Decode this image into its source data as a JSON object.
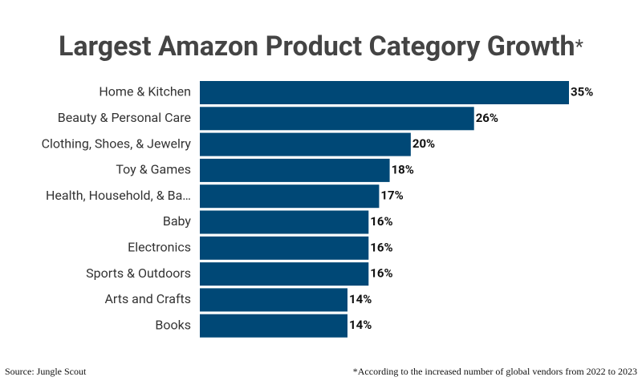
{
  "chart_data": {
    "type": "bar",
    "orientation": "horizontal",
    "title": "Largest Amazon Product Category Growth",
    "title_mark": "*",
    "categories": [
      "Home & Kitchen",
      "Beauty & Personal Care",
      "Clothing, Shoes, & Jewelry",
      "Toy & Games",
      "Health, Household, & Ba…",
      "Baby",
      "Electronics",
      "Sports & Outdoors",
      "Arts and Crafts",
      "Books"
    ],
    "values": [
      35,
      26,
      20,
      18,
      17,
      16,
      16,
      16,
      14,
      14
    ],
    "value_labels": [
      "35%",
      "26%",
      "20%",
      "18%",
      "17%",
      "16%",
      "16%",
      "16%",
      "14%",
      "14%"
    ],
    "color": "#004876",
    "source": "Source: Jungle Scout",
    "footnote": "*According to the increased number of global vendors from 2022 to 2023"
  }
}
